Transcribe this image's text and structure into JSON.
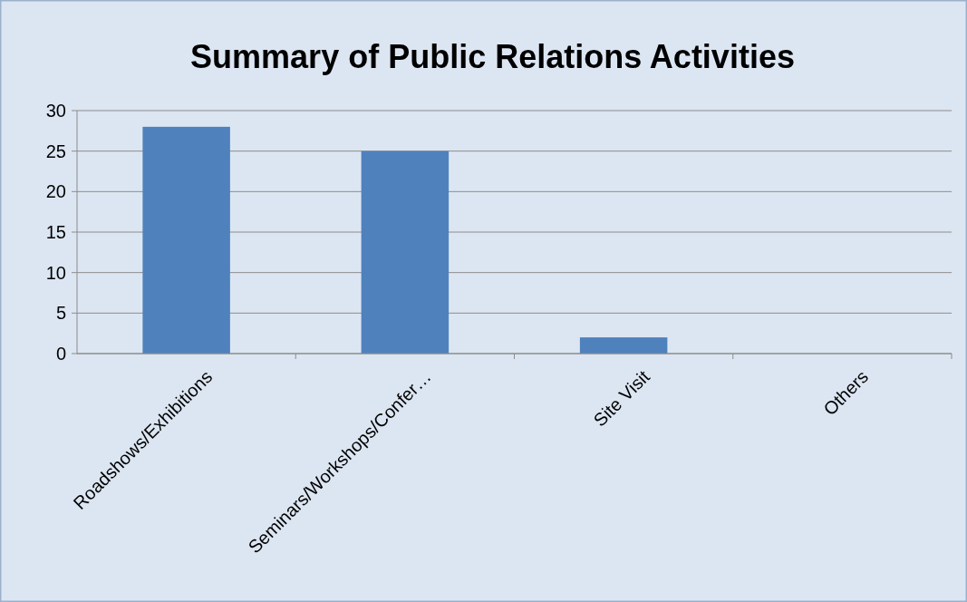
{
  "chart_data": {
    "type": "bar",
    "title": "Summary of Public Relations Activities",
    "categories": [
      "Roadshows/Exhibitions",
      "Seminars/Workshops/Confer…",
      "Site Visit",
      "Others"
    ],
    "values": [
      28,
      25,
      2,
      0
    ],
    "color": "#4f81bd",
    "ylim": [
      0,
      30
    ],
    "yticks": [
      0,
      5,
      10,
      15,
      20,
      25,
      30
    ],
    "grid": "y"
  }
}
